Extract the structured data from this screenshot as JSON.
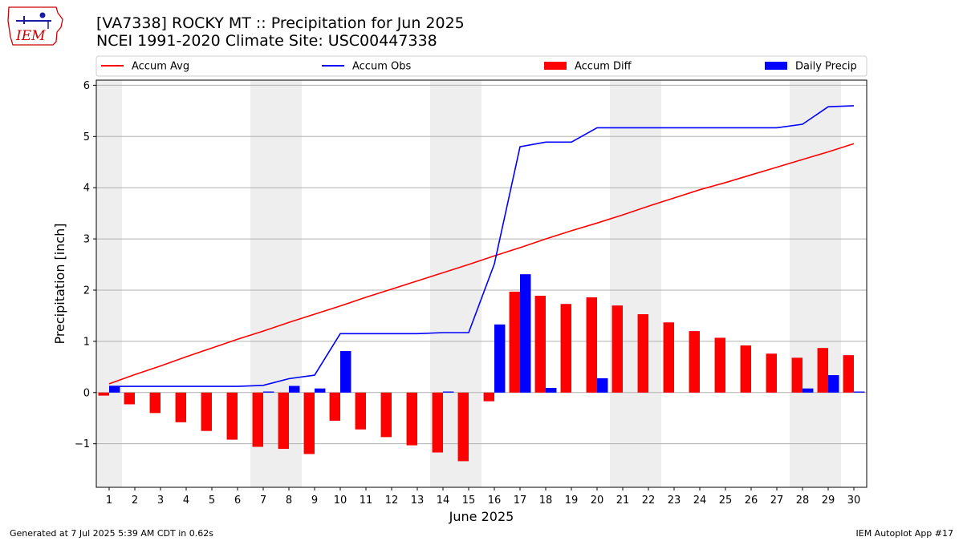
{
  "logo": {
    "text": "IEM"
  },
  "title": {
    "line1": "[VA7338] ROCKY MT :: Precipitation for Jun 2025",
    "line2": "NCEI 1991-2020 Climate Site: USC00447338"
  },
  "footer": {
    "left": "Generated at 7 Jul 2025 5:39 AM CDT in 0.62s",
    "right": "IEM Autoplot App #17"
  },
  "colors": {
    "avg": "#ff0000",
    "obs": "#0000ff",
    "diff": "#ff0000",
    "daily": "#0000ff",
    "weekend": "#eeeeee",
    "grid": "#b0b0b0"
  },
  "chart_data": {
    "type": "bar",
    "xlabel": "June 2025",
    "ylabel": "Precipitation [inch]",
    "xlim": [
      0.5,
      30.5
    ],
    "ylim": [
      -1.85,
      6.1
    ],
    "yticks": [
      -1,
      0,
      1,
      2,
      3,
      4,
      5,
      6
    ],
    "ytick_labels": [
      "−1",
      "0",
      "1",
      "2",
      "3",
      "4",
      "5",
      "6"
    ],
    "days": [
      1,
      2,
      3,
      4,
      5,
      6,
      7,
      8,
      9,
      10,
      11,
      12,
      13,
      14,
      15,
      16,
      17,
      18,
      19,
      20,
      21,
      22,
      23,
      24,
      25,
      26,
      27,
      28,
      29,
      30
    ],
    "shaded_days": [
      1,
      7,
      8,
      14,
      15,
      21,
      22,
      28,
      29
    ],
    "grid": "y",
    "legend_position": "top",
    "series": [
      {
        "name": "Accum Avg",
        "kind": "line",
        "values": [
          0.17,
          0.35,
          0.52,
          0.7,
          0.87,
          1.04,
          1.2,
          1.37,
          1.53,
          1.69,
          1.86,
          2.02,
          2.18,
          2.34,
          2.5,
          2.67,
          2.83,
          3.0,
          3.16,
          3.31,
          3.47,
          3.64,
          3.8,
          3.96,
          4.1,
          4.25,
          4.4,
          4.55,
          4.7,
          4.86
        ]
      },
      {
        "name": "Accum Obs",
        "kind": "line",
        "values": [
          0.12,
          0.12,
          0.12,
          0.12,
          0.12,
          0.12,
          0.14,
          0.27,
          0.34,
          1.15,
          1.15,
          1.15,
          1.15,
          1.17,
          1.17,
          2.51,
          4.8,
          4.89,
          4.89,
          5.17,
          5.17,
          5.17,
          5.17,
          5.17,
          5.17,
          5.17,
          5.17,
          5.24,
          5.58,
          5.6
        ]
      },
      {
        "name": "Accum Diff",
        "kind": "bar",
        "values": [
          -0.06,
          -0.23,
          -0.4,
          -0.58,
          -0.75,
          -0.92,
          -1.06,
          -1.1,
          -1.2,
          -0.55,
          -0.72,
          -0.87,
          -1.03,
          -1.17,
          -1.34,
          -0.17,
          1.97,
          1.89,
          1.73,
          1.86,
          1.7,
          1.53,
          1.37,
          1.2,
          1.07,
          0.92,
          0.76,
          0.68,
          0.87,
          0.73
        ]
      },
      {
        "name": "Daily Precip",
        "kind": "bar",
        "values": [
          0.12,
          0.0,
          0.0,
          0.0,
          0.0,
          0.0,
          0.02,
          0.13,
          0.08,
          0.81,
          0.0,
          0.0,
          0.0,
          0.02,
          0.0,
          1.33,
          2.31,
          0.09,
          0.0,
          0.28,
          0.0,
          0.0,
          0.0,
          0.0,
          0.0,
          0.0,
          0.0,
          0.08,
          0.34,
          0.02
        ]
      }
    ]
  }
}
